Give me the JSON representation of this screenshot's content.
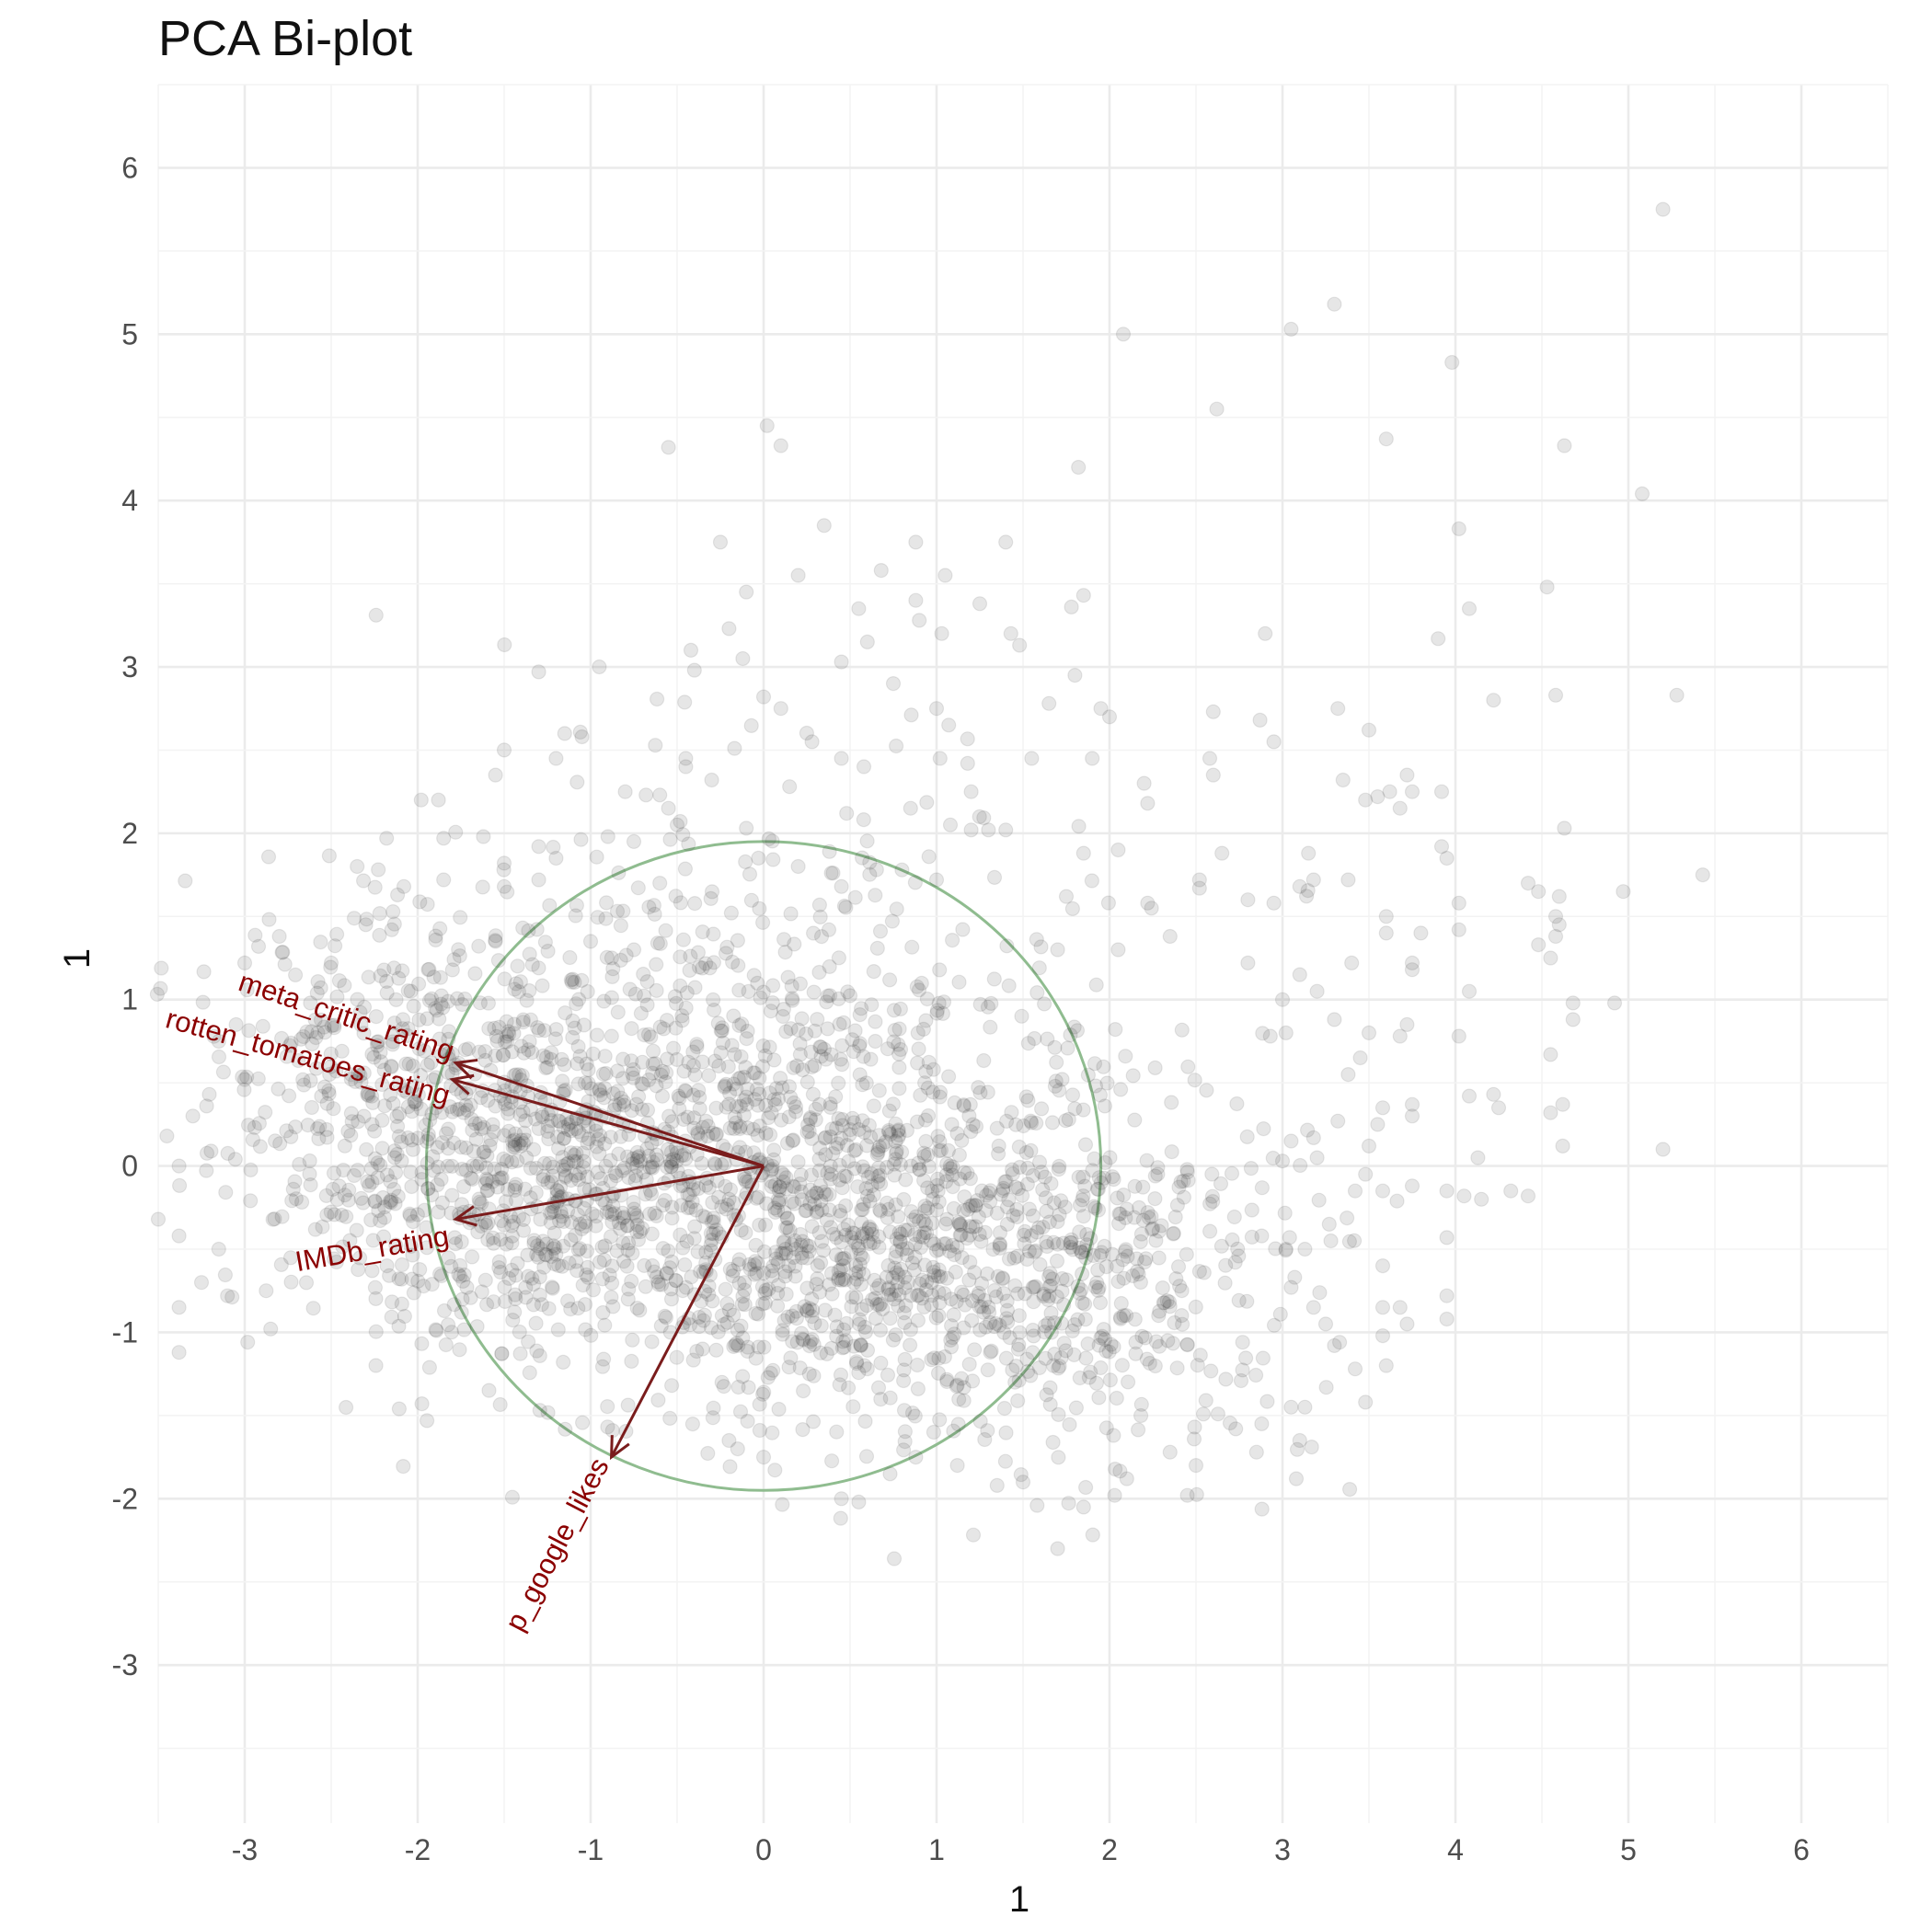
{
  "chart_data": {
    "type": "scatter",
    "title": "PCA Bi-plot",
    "xlabel": "1",
    "ylabel": "1",
    "xlim": [
      -3.5,
      6.5
    ],
    "ylim": [
      -3.95,
      6.5
    ],
    "x_ticks": [
      -3,
      -2,
      -1,
      0,
      1,
      2,
      3,
      4,
      5,
      6
    ],
    "y_ticks": [
      -3,
      -2,
      -1,
      0,
      1,
      2,
      3,
      4,
      5,
      6
    ],
    "x_tick_labels": [
      "-3",
      "-2",
      "-1",
      "0",
      "1",
      "2",
      "3",
      "4",
      "5",
      "6"
    ],
    "y_tick_labels": [
      "-3",
      "-2",
      "-1",
      "0",
      "1",
      "2",
      "3",
      "4",
      "5",
      "6"
    ],
    "grid": true,
    "legend": "none",
    "point_color": "#333333",
    "point_opacity": 0.12,
    "arrow_color": "#7a1c1c",
    "label_color": "#8b0000",
    "circle_color": "#8fbc8f",
    "circle": {
      "center": [
        0,
        0
      ],
      "radius": 1.95
    },
    "loadings": [
      {
        "name": "meta_critic_rating",
        "x": -1.78,
        "y": 0.62
      },
      {
        "name": "rotten_tomatoes_rating",
        "x": -1.8,
        "y": 0.52
      },
      {
        "name": "IMDb_rating",
        "x": -1.78,
        "y": -0.32
      },
      {
        "name": "p_google_likes",
        "x": -0.88,
        "y": -1.75
      }
    ],
    "points": [
      [
        5.2,
        5.75
      ],
      [
        3.3,
        5.18
      ],
      [
        3.05,
        5.03
      ],
      [
        2.08,
        5.0
      ],
      [
        3.98,
        4.83
      ],
      [
        2.62,
        4.55
      ],
      [
        0.02,
        4.45
      ],
      [
        0.1,
        4.33
      ],
      [
        -0.55,
        4.32
      ],
      [
        3.6,
        4.37
      ],
      [
        4.63,
        4.33
      ],
      [
        1.82,
        4.2
      ],
      [
        5.08,
        4.04
      ],
      [
        0.35,
        3.85
      ],
      [
        4.02,
        3.83
      ],
      [
        -0.25,
        3.75
      ],
      [
        0.88,
        3.75
      ],
      [
        1.4,
        3.75
      ],
      [
        0.68,
        3.58
      ],
      [
        1.05,
        3.55
      ],
      [
        0.2,
        3.55
      ],
      [
        4.53,
        3.48
      ],
      [
        1.85,
        3.43
      ],
      [
        0.88,
        3.4
      ],
      [
        1.78,
        3.36
      ],
      [
        4.08,
        3.35
      ],
      [
        0.55,
        3.35
      ],
      [
        1.25,
        3.38
      ],
      [
        0.9,
        3.28
      ],
      [
        -0.1,
        3.45
      ],
      [
        2.9,
        3.2
      ],
      [
        3.9,
        3.17
      ],
      [
        1.43,
        3.2
      ],
      [
        0.6,
        3.15
      ],
      [
        -0.2,
        3.23
      ],
      [
        1.03,
        3.2
      ],
      [
        1.48,
        3.13
      ],
      [
        -0.42,
        3.1
      ],
      [
        0.45,
        3.03
      ],
      [
        -0.12,
        3.05
      ],
      [
        -0.95,
        3.0
      ],
      [
        -1.3,
        2.97
      ],
      [
        -0.4,
        2.98
      ],
      [
        0.75,
        2.9
      ],
      [
        1.8,
        2.95
      ],
      [
        2.95,
        2.55
      ],
      [
        4.58,
        2.83
      ],
      [
        5.28,
        2.83
      ],
      [
        4.22,
        2.8
      ],
      [
        3.32,
        2.75
      ],
      [
        1.95,
        2.75
      ],
      [
        1.0,
        2.75
      ],
      [
        0.1,
        2.75
      ],
      [
        0.0,
        2.82
      ],
      [
        2.6,
        2.73
      ],
      [
        2.87,
        2.68
      ],
      [
        1.65,
        2.78
      ],
      [
        1.07,
        2.65
      ],
      [
        3.5,
        2.62
      ],
      [
        2.0,
        2.7
      ],
      [
        -1.15,
        2.6
      ],
      [
        -1.05,
        2.58
      ],
      [
        0.28,
        2.55
      ],
      [
        1.9,
        2.45
      ],
      [
        0.45,
        2.45
      ],
      [
        -0.45,
        2.45
      ],
      [
        -1.5,
        2.5
      ],
      [
        -0.45,
        2.4
      ],
      [
        -1.2,
        2.45
      ],
      [
        2.58,
        2.45
      ],
      [
        2.6,
        2.35
      ],
      [
        1.55,
        2.45
      ],
      [
        1.18,
        2.42
      ],
      [
        1.02,
        2.45
      ],
      [
        -0.3,
        2.32
      ],
      [
        -1.55,
        2.35
      ],
      [
        -0.8,
        2.25
      ],
      [
        0.58,
        2.4
      ],
      [
        2.2,
        2.3
      ],
      [
        3.35,
        2.32
      ],
      [
        3.72,
        2.35
      ],
      [
        3.55,
        2.22
      ],
      [
        3.62,
        2.25
      ],
      [
        3.75,
        2.25
      ],
      [
        3.92,
        2.25
      ],
      [
        3.48,
        2.2
      ],
      [
        3.68,
        2.15
      ],
      [
        1.2,
        2.25
      ],
      [
        0.15,
        2.28
      ],
      [
        -0.6,
        2.23
      ],
      [
        -1.88,
        2.2
      ],
      [
        -1.98,
        2.2
      ],
      [
        -0.68,
        2.23
      ],
      [
        -0.55,
        2.15
      ],
      [
        2.22,
        2.18
      ],
      [
        0.48,
        2.12
      ],
      [
        0.85,
        2.15
      ],
      [
        4.63,
        2.03
      ],
      [
        1.08,
        2.05
      ],
      [
        1.2,
        2.02
      ],
      [
        1.3,
        2.02
      ],
      [
        1.4,
        2.02
      ],
      [
        -0.5,
        2.05
      ],
      [
        -0.1,
        2.03
      ],
      [
        -1.62,
        1.98
      ],
      [
        -2.18,
        1.97
      ],
      [
        -1.85,
        1.97
      ],
      [
        -0.9,
        1.98
      ],
      [
        -1.3,
        1.92
      ],
      [
        -0.75,
        1.95
      ],
      [
        1.85,
        1.88
      ],
      [
        2.05,
        1.9
      ],
      [
        3.15,
        1.88
      ],
      [
        3.92,
        1.92
      ],
      [
        3.95,
        1.85
      ],
      [
        2.65,
        1.88
      ],
      [
        -2.35,
        1.8
      ],
      [
        -1.5,
        1.82
      ],
      [
        -1.2,
        1.85
      ],
      [
        0.2,
        1.8
      ],
      [
        0.8,
        1.78
      ],
      [
        1.0,
        1.72
      ],
      [
        5.43,
        1.75
      ],
      [
        3.38,
        1.72
      ],
      [
        3.18,
        1.72
      ],
      [
        2.52,
        1.72
      ],
      [
        4.42,
        1.7
      ],
      [
        4.48,
        1.65
      ],
      [
        4.6,
        1.62
      ],
      [
        4.97,
        1.65
      ],
      [
        4.02,
        1.58
      ],
      [
        -2.08,
        1.68
      ],
      [
        -1.85,
        1.72
      ],
      [
        -1.3,
        1.72
      ],
      [
        -1.5,
        1.68
      ],
      [
        -0.6,
        1.7
      ],
      [
        0.45,
        1.68
      ],
      [
        1.75,
        1.62
      ],
      [
        2.22,
        1.58
      ],
      [
        2.8,
        1.6
      ],
      [
        2.52,
        1.67
      ],
      [
        2.95,
        1.58
      ],
      [
        3.1,
        1.68
      ],
      [
        4.58,
        1.5
      ],
      [
        4.02,
        1.42
      ],
      [
        3.6,
        1.5
      ],
      [
        3.8,
        1.4
      ],
      [
        4.6,
        1.45
      ],
      [
        4.58,
        1.38
      ],
      [
        4.48,
        1.33
      ],
      [
        2.35,
        1.38
      ],
      [
        3.6,
        1.4
      ],
      [
        3.75,
        1.22
      ],
      [
        -2.15,
        1.42
      ],
      [
        -2.3,
        1.45
      ],
      [
        -2.8,
        1.38
      ],
      [
        -2.92,
        1.32
      ],
      [
        -3.0,
        1.22
      ],
      [
        -1.55,
        1.35
      ],
      [
        -1.0,
        1.35
      ],
      [
        -0.75,
        1.3
      ],
      [
        2.05,
        1.3
      ],
      [
        2.8,
        1.22
      ],
      [
        1.7,
        1.3
      ],
      [
        4.55,
        1.25
      ],
      [
        3.4,
        1.22
      ],
      [
        3.75,
        1.18
      ],
      [
        3.1,
        1.15
      ],
      [
        3.2,
        1.05
      ],
      [
        3.0,
        1.0
      ],
      [
        4.08,
        1.05
      ],
      [
        4.68,
        0.98
      ],
      [
        4.92,
        0.98
      ],
      [
        4.68,
        0.88
      ],
      [
        3.72,
        0.85
      ],
      [
        3.5,
        0.8
      ],
      [
        3.3,
        0.88
      ],
      [
        3.02,
        0.8
      ],
      [
        4.02,
        0.78
      ],
      [
        2.93,
        0.78
      ],
      [
        3.68,
        0.78
      ],
      [
        3.45,
        0.65
      ],
      [
        4.55,
        0.67
      ],
      [
        3.38,
        0.55
      ],
      [
        4.08,
        0.42
      ],
      [
        4.22,
        0.43
      ],
      [
        4.25,
        0.35
      ],
      [
        4.62,
        0.37
      ],
      [
        4.55,
        0.32
      ],
      [
        3.75,
        0.37
      ],
      [
        3.58,
        0.35
      ],
      [
        3.75,
        0.3
      ],
      [
        3.32,
        0.27
      ],
      [
        3.55,
        0.25
      ],
      [
        4.13,
        0.05
      ],
      [
        4.62,
        0.12
      ],
      [
        5.2,
        0.1
      ],
      [
        3.5,
        0.12
      ],
      [
        3.05,
        0.15
      ],
      [
        3.18,
        0.17
      ],
      [
        3.2,
        0.05
      ],
      [
        3.0,
        0.03
      ],
      [
        3.48,
        -0.05
      ],
      [
        3.42,
        -0.15
      ],
      [
        3.58,
        -0.15
      ],
      [
        3.75,
        -0.12
      ],
      [
        3.95,
        -0.15
      ],
      [
        4.05,
        -0.18
      ],
      [
        4.15,
        -0.2
      ],
      [
        4.32,
        -0.15
      ],
      [
        4.42,
        -0.18
      ],
      [
        3.58,
        -0.6
      ],
      [
        3.95,
        -0.43
      ],
      [
        3.28,
        -0.45
      ],
      [
        3.13,
        -0.5
      ],
      [
        3.02,
        -0.5
      ],
      [
        2.88,
        -0.42
      ],
      [
        3.27,
        -0.35
      ],
      [
        3.05,
        -0.73
      ],
      [
        3.18,
        -0.85
      ],
      [
        3.25,
        -0.95
      ],
      [
        3.58,
        -0.85
      ],
      [
        3.68,
        -0.85
      ],
      [
        3.72,
        -0.95
      ],
      [
        3.95,
        -0.78
      ],
      [
        3.95,
        -0.92
      ],
      [
        3.58,
        -1.02
      ],
      [
        3.3,
        -1.08
      ],
      [
        3.42,
        -1.22
      ],
      [
        3.6,
        -1.2
      ],
      [
        3.48,
        -1.42
      ],
      [
        3.05,
        -1.45
      ],
      [
        3.13,
        -1.45
      ],
      [
        2.88,
        -1.55
      ],
      [
        2.73,
        -1.58
      ],
      [
        2.85,
        -1.72
      ],
      [
        3.1,
        -1.65
      ],
      [
        3.08,
        -1.88
      ],
      [
        2.45,
        -1.98
      ],
      [
        2.5,
        -1.8
      ],
      [
        2.35,
        -1.72
      ],
      [
        2.1,
        -1.88
      ],
      [
        2.03,
        -1.98
      ],
      [
        1.85,
        -2.05
      ],
      [
        1.7,
        -2.3
      ],
      [
        1.5,
        -1.9
      ],
      [
        1.35,
        -1.92
      ],
      [
        1.12,
        -1.8
      ],
      [
        0.88,
        -1.75
      ],
      [
        0.55,
        -2.02
      ],
      [
        0.45,
        -2.0
      ],
      [
        -0.15,
        -1.7
      ],
      [
        0.0,
        -1.75
      ],
      [
        -0.2,
        -1.65
      ],
      [
        -3.38,
        -1.12
      ],
      [
        -3.38,
        -0.85
      ],
      [
        -2.85,
        -0.98
      ],
      [
        -3.1,
        -0.78
      ],
      [
        -3.25,
        -0.7
      ],
      [
        -3.15,
        -0.5
      ],
      [
        -3.38,
        -0.42
      ],
      [
        -3.5,
        -0.32
      ],
      [
        -3.38,
        -0.0
      ],
      [
        -3.45,
        0.18
      ],
      [
        -3.3,
        0.3
      ],
      [
        -3.0,
        0.52
      ],
      [
        -3.15,
        0.75
      ],
      [
        -3.05,
        0.85
      ],
      [
        -2.62,
        0.98
      ],
      [
        -2.5,
        1.22
      ]
    ],
    "clusters": [
      {
        "cx": -1.2,
        "cy": 0.0,
        "sx": 0.75,
        "sy": 0.6,
        "n": 900
      },
      {
        "cx": 0.7,
        "cy": -0.5,
        "sx": 0.75,
        "sy": 0.55,
        "n": 800
      },
      {
        "cx": 0.0,
        "cy": 0.6,
        "sx": 0.95,
        "sy": 0.85,
        "n": 500
      },
      {
        "cx": 2.0,
        "cy": -0.7,
        "sx": 0.6,
        "sy": 0.55,
        "n": 300
      },
      {
        "cx": -2.4,
        "cy": 0.45,
        "sx": 0.45,
        "sy": 0.55,
        "n": 220
      }
    ]
  }
}
